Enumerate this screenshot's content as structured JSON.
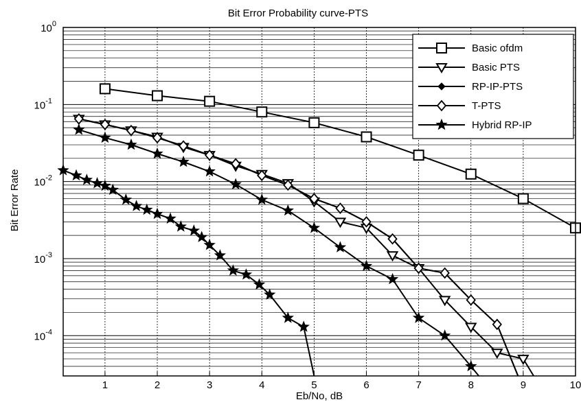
{
  "chart_data": {
    "type": "line",
    "title": "Bit Error Probability curve-PTS",
    "xlabel": "Eb/No, dB",
    "ylabel": "Bit Error Rate",
    "xlim": [
      0.2,
      10
    ],
    "ylim": [
      3e-05,
      1
    ],
    "yscale": "log",
    "grid": true,
    "legend_position": "top-right",
    "x_ticks": [
      1,
      2,
      3,
      4,
      5,
      6,
      7,
      8,
      9,
      10
    ],
    "y_ticks": [
      {
        "value": 1,
        "base": "10",
        "exp": "0"
      },
      {
        "value": 0.1,
        "base": "10",
        "exp": "-1"
      },
      {
        "value": 0.01,
        "base": "10",
        "exp": "-2"
      },
      {
        "value": 0.001,
        "base": "10",
        "exp": "-3"
      },
      {
        "value": 0.0001,
        "base": "10",
        "exp": "-4"
      }
    ],
    "series": [
      {
        "name": "Basic ofdm",
        "marker": "square",
        "x": [
          1,
          2,
          3,
          4,
          5,
          6,
          7,
          8,
          9,
          10
        ],
        "y": [
          0.16,
          0.13,
          0.11,
          0.08,
          0.058,
          0.038,
          0.022,
          0.0125,
          0.006,
          0.0025
        ]
      },
      {
        "name": "Basic PTS",
        "marker": "triangle-down",
        "x": [
          0.5,
          1,
          1.5,
          2,
          2.5,
          3,
          3.5,
          4,
          4.5,
          5,
          5.5,
          6,
          6.5,
          7,
          7.5,
          8,
          8.5,
          9,
          9.2
        ],
        "y": [
          0.065,
          0.055,
          0.046,
          0.038,
          0.028,
          0.022,
          0.016,
          0.0125,
          0.0095,
          0.0055,
          0.003,
          0.0025,
          0.0011,
          0.00075,
          0.00029,
          0.00013,
          6e-05,
          5e-05,
          3e-05
        ]
      },
      {
        "name": "RP-IP-PTS",
        "marker": "filled-diamond",
        "x": [
          0.5,
          1,
          1.5,
          2,
          2.5,
          3,
          3.5,
          4,
          4.5,
          5,
          5.5,
          6,
          6.5,
          7,
          7.5,
          8,
          8.5,
          8.9
        ],
        "y": [
          0.065,
          0.055,
          0.046,
          0.037,
          0.029,
          0.022,
          0.017,
          0.012,
          0.009,
          0.006,
          0.0045,
          0.003,
          0.0018,
          0.00075,
          0.00065,
          0.00029,
          0.00014,
          3e-05
        ]
      },
      {
        "name": "T-PTS",
        "marker": "diamond",
        "x": [
          0.5,
          1,
          1.5,
          2,
          2.5,
          3,
          3.5,
          4,
          4.5,
          5,
          5.5,
          6,
          6.5,
          7,
          7.5,
          8,
          8.5,
          8.9
        ],
        "y": [
          0.065,
          0.055,
          0.046,
          0.037,
          0.029,
          0.022,
          0.017,
          0.012,
          0.009,
          0.006,
          0.0045,
          0.003,
          0.0018,
          0.00075,
          0.00065,
          0.00029,
          0.00014,
          3e-05
        ]
      },
      {
        "name": "Hybrid RP-IP",
        "marker": "star",
        "x": [
          0.5,
          1,
          1.5,
          2,
          2.5,
          3,
          3.5,
          4,
          4.5,
          5,
          5.5,
          6,
          6.5,
          7,
          7.5,
          8,
          8.15
        ],
        "y": [
          0.047,
          0.037,
          0.03,
          0.023,
          0.018,
          0.0135,
          0.0092,
          0.0058,
          0.0042,
          0.0025,
          0.0014,
          0.0008,
          0.00054,
          0.00017,
          0.0001,
          4e-05,
          3e-05
        ]
      }
    ],
    "hybrid_tail": {
      "x": [
        0.2,
        0.45,
        0.65,
        0.85,
        1.0,
        1.15,
        1.4,
        1.6,
        1.8,
        2.0,
        2.25,
        2.45,
        2.7,
        2.85,
        3.0,
        3.2,
        3.45,
        3.7,
        3.95,
        4.15,
        4.5,
        4.8,
        5.0
      ],
      "y": [
        0.014,
        0.012,
        0.0105,
        0.0095,
        0.0088,
        0.0078,
        0.0058,
        0.0048,
        0.0043,
        0.0038,
        0.0033,
        0.0026,
        0.0023,
        0.0019,
        0.0015,
        0.0011,
        0.0007,
        0.00062,
        0.00046,
        0.00034,
        0.00017,
        0.00013,
        3e-05
      ]
    }
  }
}
